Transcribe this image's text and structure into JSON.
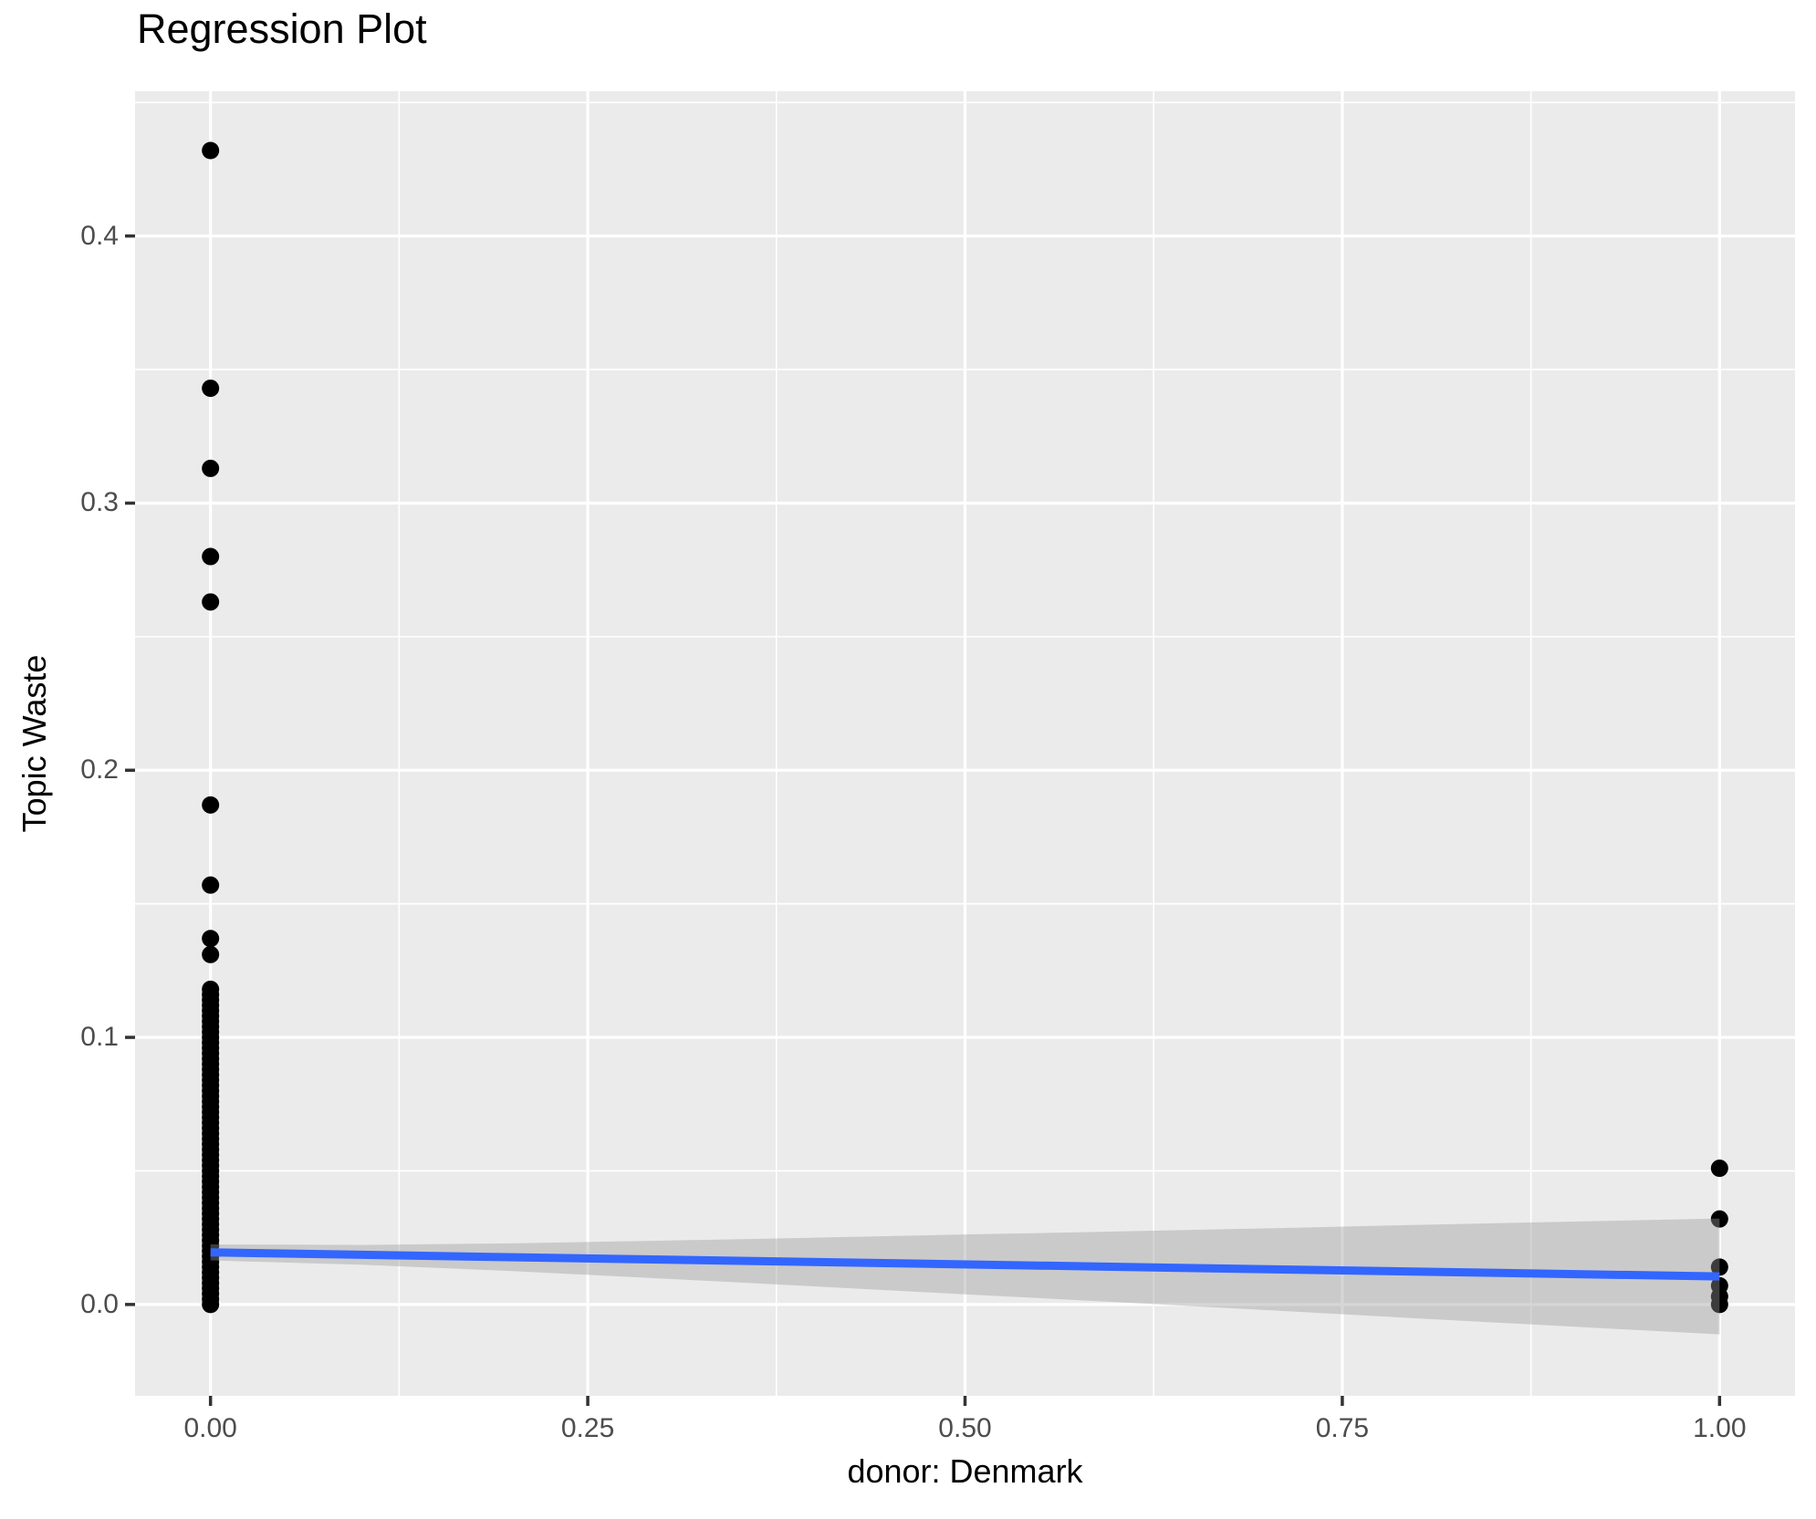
{
  "chart_data": {
    "type": "scatter",
    "title": "Regression Plot",
    "xlabel": "donor: Denmark",
    "ylabel": "Topic Waste",
    "legend": "none",
    "grid": true,
    "xlim": [
      -0.05,
      1.05
    ],
    "ylim": [
      -0.0342,
      0.4542
    ],
    "x_ticks": [
      0,
      0.25,
      0.5,
      0.75,
      1
    ],
    "x_tick_labels": [
      "0.00",
      "0.25",
      "0.50",
      "0.75",
      "1.00"
    ],
    "x_minor_ticks": [
      0.125,
      0.375,
      0.625,
      0.875
    ],
    "y_ticks": [
      0,
      0.1,
      0.2,
      0.3,
      0.4
    ],
    "y_tick_labels": [
      "0.0",
      "0.1",
      "0.2",
      "0.3",
      "0.4"
    ],
    "y_minor_ticks": [
      0.05,
      0.15,
      0.25,
      0.35,
      0.45
    ],
    "colors": {
      "panel_background": "#EBEBEB",
      "gridline": "#FFFFFF",
      "point": "#000000",
      "smooth_line": "#3366FF",
      "ribbon": "#999999",
      "ribbon_opacity": 0.4,
      "tick_label": "#4D4D4D",
      "tick_mark": "#333333"
    },
    "series": [
      {
        "name": "observations-donor-0",
        "type": "points",
        "x": 0,
        "y_values": [
          0.432,
          0.343,
          0.313,
          0.28,
          0.263,
          0.187,
          0.157,
          0.137,
          0.131,
          0.118,
          0.116,
          0.114,
          0.112,
          0.11,
          0.108,
          0.106,
          0.104,
          0.102,
          0.1,
          0.098,
          0.096,
          0.094,
          0.092,
          0.09,
          0.088,
          0.086,
          0.084,
          0.082,
          0.08,
          0.078,
          0.076,
          0.074,
          0.072,
          0.07,
          0.068,
          0.066,
          0.064,
          0.062,
          0.06,
          0.058,
          0.056,
          0.054,
          0.052,
          0.05,
          0.048,
          0.046,
          0.044,
          0.042,
          0.04,
          0.038,
          0.036,
          0.034,
          0.032,
          0.03,
          0.028,
          0.026,
          0.024,
          0.022,
          0.02,
          0.018,
          0.016,
          0.014,
          0.012,
          0.01,
          0.008,
          0.006,
          0.004,
          0.002,
          0.0
        ]
      },
      {
        "name": "observations-donor-1",
        "type": "points",
        "x": 1,
        "y_values": [
          0.051,
          0.032,
          0.014,
          0.007,
          0.003,
          0.0
        ]
      },
      {
        "name": "ols-fit-line",
        "type": "line",
        "x": [
          0,
          1
        ],
        "y": [
          0.0195,
          0.0105
        ]
      },
      {
        "name": "confidence-band",
        "type": "ribbon",
        "x": [
          0,
          0.1,
          0.2,
          0.3,
          0.4,
          0.5,
          0.6,
          0.7,
          0.8,
          0.9,
          1.0
        ],
        "lo": [
          0.0165,
          0.0149,
          0.0125,
          0.0097,
          0.0068,
          0.0038,
          0.0009,
          -0.0021,
          -0.0052,
          -0.0082,
          -0.0112
        ],
        "hi": [
          0.0225,
          0.0223,
          0.0229,
          0.0239,
          0.025,
          0.0262,
          0.0273,
          0.0285,
          0.0298,
          0.031,
          0.0322
        ]
      }
    ]
  }
}
